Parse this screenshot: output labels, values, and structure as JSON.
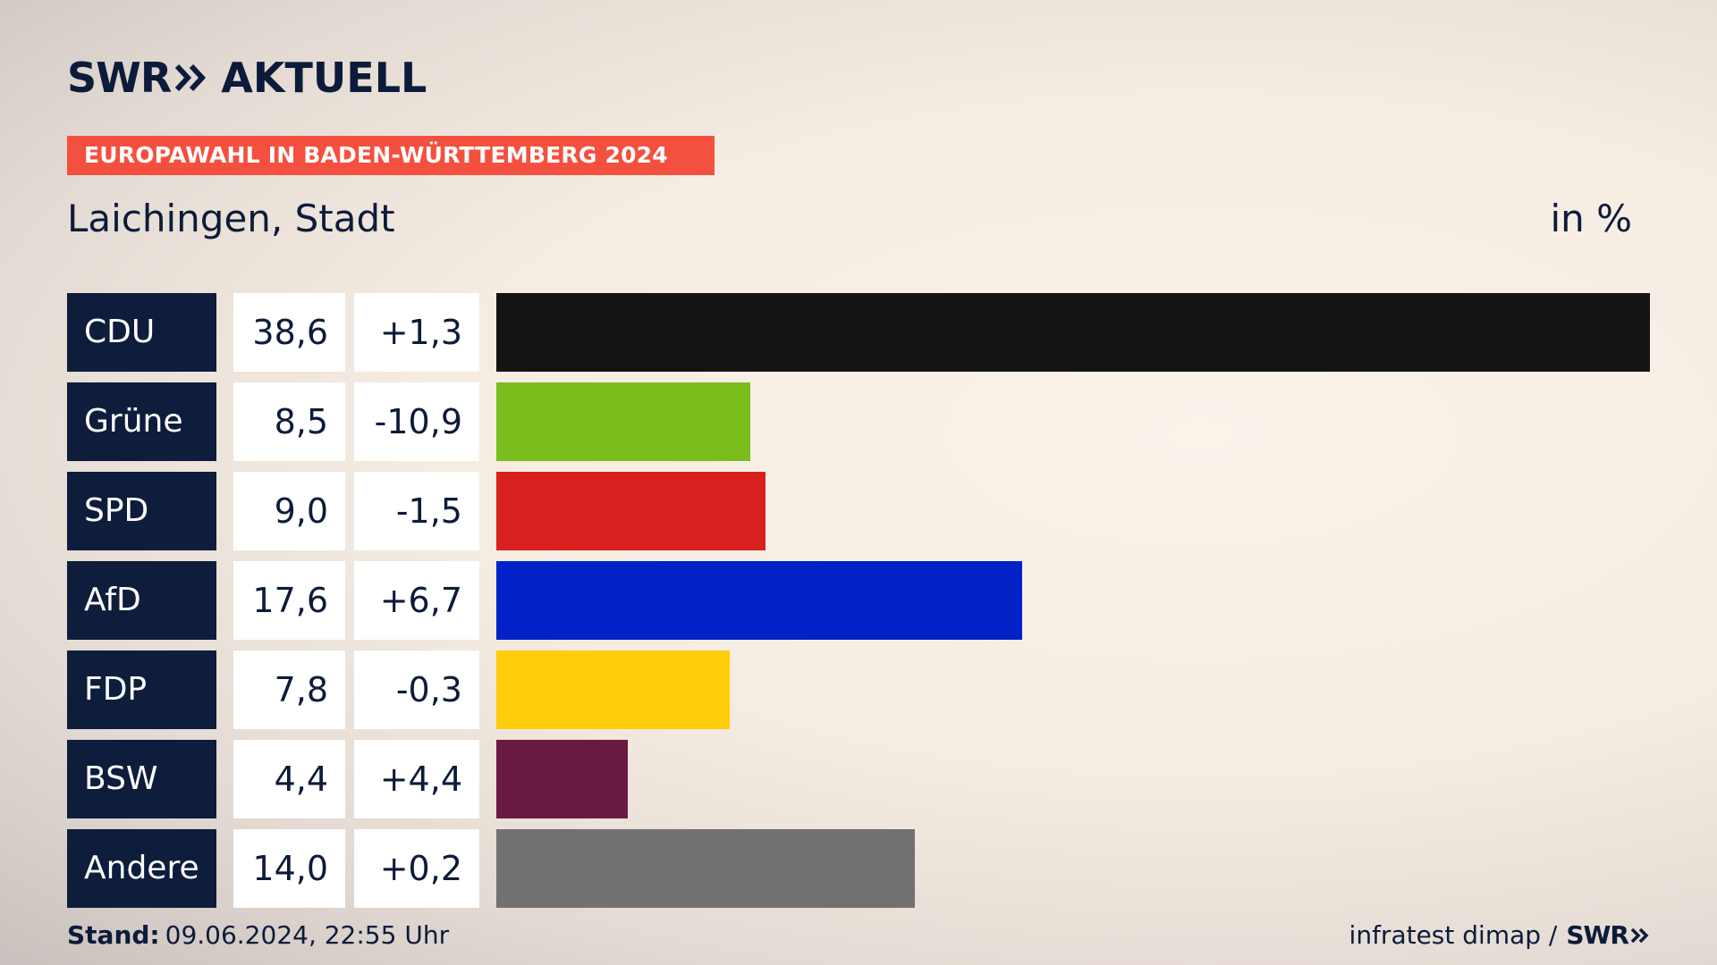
{
  "brand": {
    "logo_text": "SWR",
    "logo_suffix": "AKTUELL",
    "logo_icon": "double-chevron-icon"
  },
  "header": {
    "banner": "EUROPAWAHL IN BADEN-WÜRTTEMBERG 2024",
    "location": "Laichingen, Stadt",
    "unit": "in %"
  },
  "colors": {
    "banner": "#f4503f",
    "label_bg": "#0e1d3c",
    "text": "#0d1b3a"
  },
  "chart_data": {
    "type": "bar",
    "orientation": "horizontal",
    "categories": [
      "CDU",
      "Grüne",
      "SPD",
      "AfD",
      "FDP",
      "BSW",
      "Andere"
    ],
    "values": [
      38.6,
      8.5,
      9.0,
      17.6,
      7.8,
      4.4,
      14.0
    ],
    "value_labels": [
      "38,6",
      "8,5",
      "9,0",
      "17,6",
      "7,8",
      "4,4",
      "14,0"
    ],
    "change_labels": [
      "+1,3",
      "-10,9",
      "-1,5",
      "+6,7",
      "-0,3",
      "+4,4",
      "+0,2"
    ],
    "bar_colors": [
      "#141414",
      "#7cbd1e",
      "#d8201f",
      "#0222c8",
      "#fecd0b",
      "#6a1a40",
      "#717171"
    ],
    "xlim": [
      0,
      38.6
    ],
    "grid": false
  },
  "footer": {
    "stand_label": "Stand:",
    "stand_value": "09.06.2024, 22:55 Uhr",
    "source": "infratest dimap /",
    "source_logo": "SWR"
  }
}
